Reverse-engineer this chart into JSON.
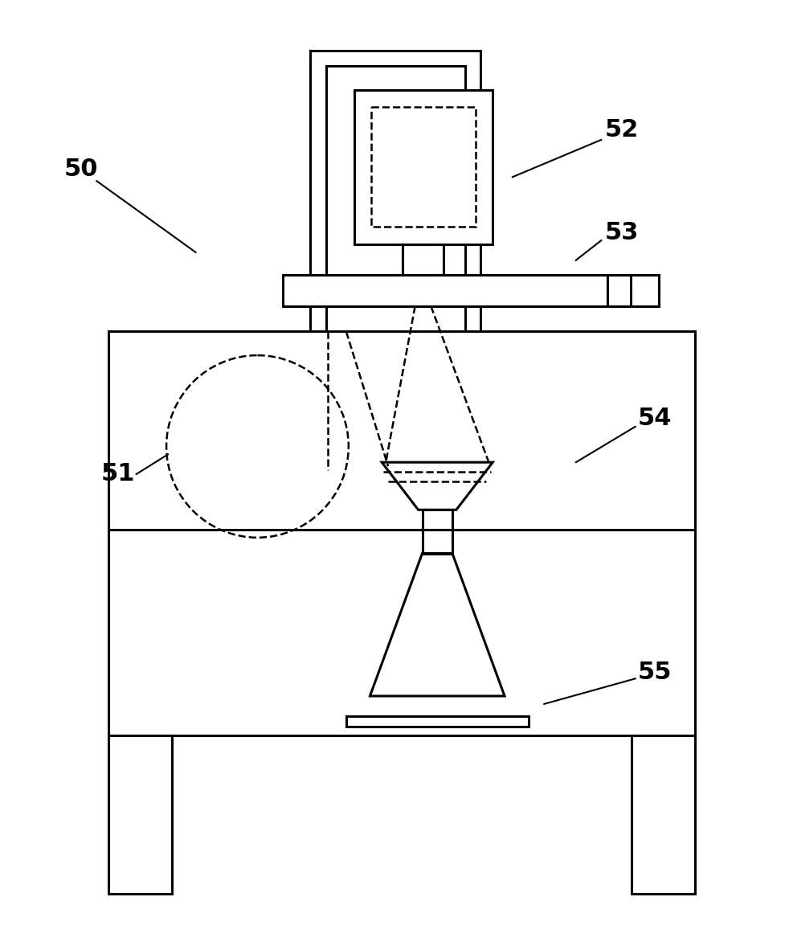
{
  "bg_color": "#ffffff",
  "line_color": "#000000",
  "lw": 2.2,
  "dlw": 1.8,
  "label_fontsize": 22
}
